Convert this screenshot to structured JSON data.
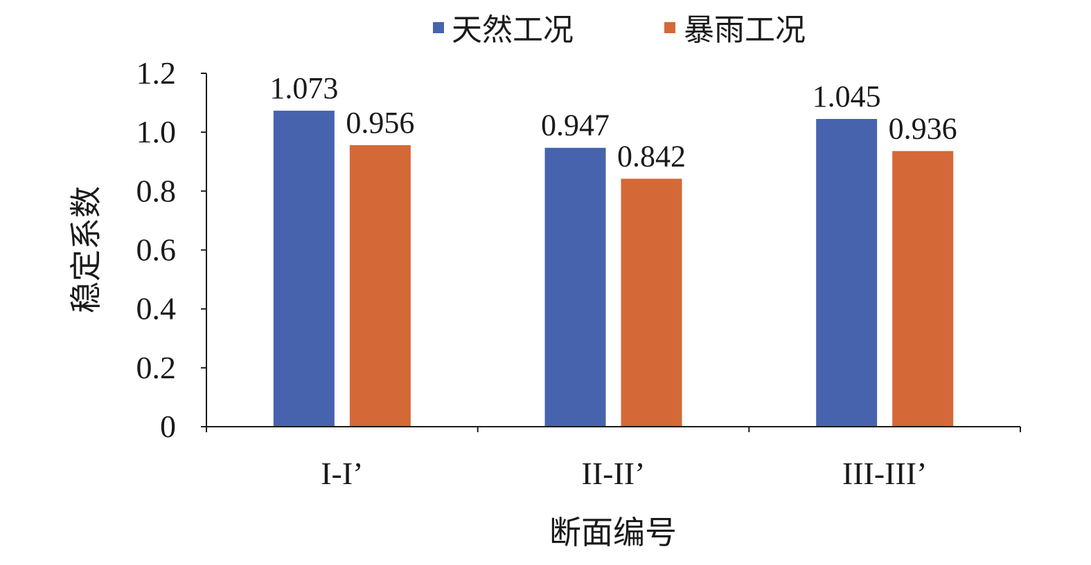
{
  "chart_data": {
    "type": "bar",
    "title": "",
    "xlabel": "断面编号",
    "ylabel": "稳定系数",
    "categories": [
      "I-I’",
      "II-II’",
      "III-III’"
    ],
    "series": [
      {
        "name": "天然工况",
        "color": "#4763AE",
        "values": [
          1.073,
          0.947,
          1.045
        ]
      },
      {
        "name": "暴雨工况",
        "color": "#D46837",
        "values": [
          0.956,
          0.842,
          0.936
        ]
      }
    ],
    "ylim": [
      0,
      1.2
    ],
    "yticks": [
      "0",
      "0.2",
      "0.4",
      "0.6",
      "0.8",
      "1.0",
      "1.2"
    ],
    "data_labels": [
      [
        "1.073",
        "0.947",
        "1.045"
      ],
      [
        "0.956",
        "0.842",
        "0.936"
      ]
    ],
    "legend_position": "top-center",
    "grid": false
  }
}
